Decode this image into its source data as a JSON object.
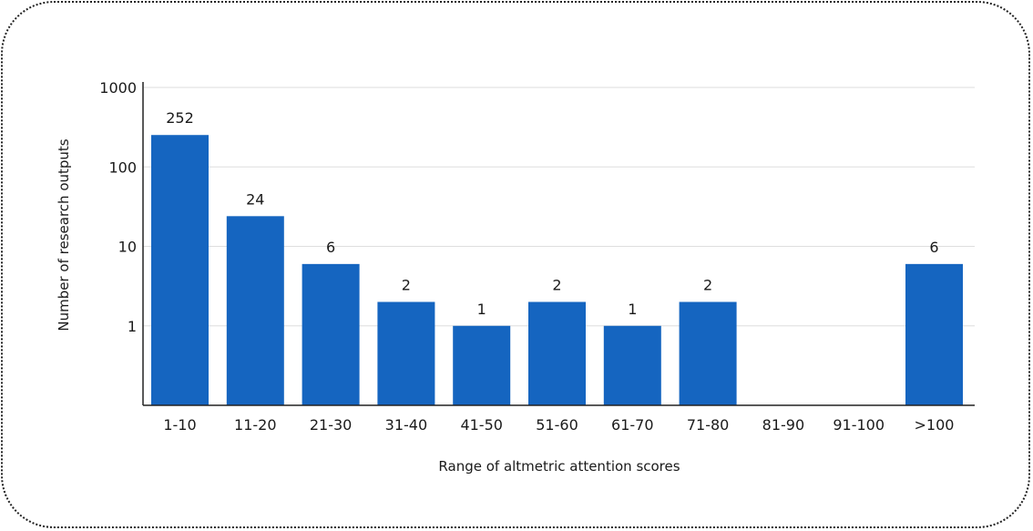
{
  "chart_data": {
    "type": "bar",
    "xlabel": "Range of altmetric attention scores",
    "ylabel": "Number of research outputs",
    "yscale": "log",
    "ylim": [
      0.1,
      1000
    ],
    "grid": true,
    "yticks": [
      {
        "value": 1000,
        "label": "1000"
      },
      {
        "value": 100,
        "label": "100"
      },
      {
        "value": 10,
        "label": "10"
      },
      {
        "value": 1,
        "label": "1"
      }
    ],
    "categories": [
      "1-10",
      "11-20",
      "21-30",
      "31-40",
      "41-50",
      "51-60",
      "61-70",
      "71-80",
      "81-90",
      "91-100",
      ">100"
    ],
    "values": [
      252,
      24,
      6,
      2,
      1,
      2,
      1,
      2,
      null,
      null,
      6
    ],
    "data_labels": [
      "252",
      "24",
      "6",
      "2",
      "1",
      "2",
      "1",
      "2",
      "",
      "",
      "6"
    ],
    "bar_color": "#1565C0"
  }
}
